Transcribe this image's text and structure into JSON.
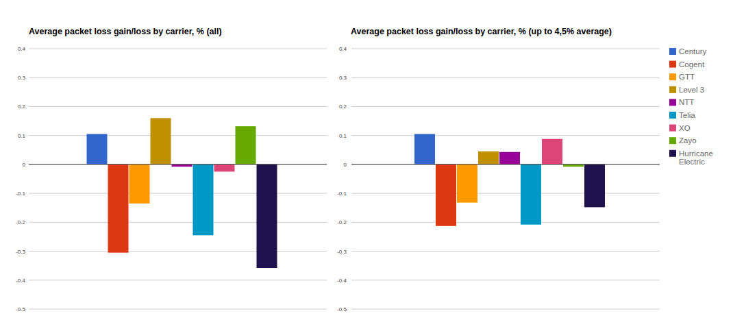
{
  "chart_data": [
    {
      "type": "bar",
      "title": "Average packet loss gain/loss by carrier, % (all)",
      "categories": [
        "Century",
        "Cogent",
        "GTT",
        "Level 3",
        "NTT",
        "Telia",
        "XO",
        "Zayo",
        "Hurricane Electric"
      ],
      "values": [
        0.105,
        -0.305,
        -0.135,
        0.16,
        -0.008,
        -0.245,
        -0.025,
        0.132,
        -0.358
      ],
      "colors": [
        "#3366cc",
        "#dc3912",
        "#ff9900",
        "#bf9000",
        "#990099",
        "#0099c6",
        "#dd4477",
        "#66aa00",
        "#20124d"
      ],
      "ylim": [
        -0.5,
        0.4
      ],
      "yticks": [
        -0.5,
        -0.4,
        -0.3,
        -0.2,
        -0.1,
        0,
        0.1,
        0.2,
        0.3,
        0.4
      ],
      "grid": true,
      "tick_labels": "y"
    },
    {
      "type": "bar",
      "title": "Average packet loss gain/loss by carrier, % (up to 4,5% average)",
      "categories": [
        "Century",
        "Cogent",
        "GTT",
        "Level 3",
        "NTT",
        "Telia",
        "XO",
        "Zayo",
        "Hurricane Electric"
      ],
      "values": [
        0.105,
        -0.213,
        -0.132,
        0.045,
        0.043,
        -0.208,
        0.088,
        -0.008,
        -0.148
      ],
      "colors": [
        "#3366cc",
        "#dc3912",
        "#ff9900",
        "#bf9000",
        "#990099",
        "#0099c6",
        "#dd4477",
        "#66aa00",
        "#20124d"
      ],
      "ylim": [
        -0.5,
        0.4
      ],
      "yticks": [
        -0.5,
        -0.4,
        -0.3,
        -0.2,
        -0.1,
        0,
        0.1,
        0.2,
        0.3,
        0.4
      ],
      "grid": true,
      "tick_labels": "y",
      "legend": "right"
    }
  ]
}
